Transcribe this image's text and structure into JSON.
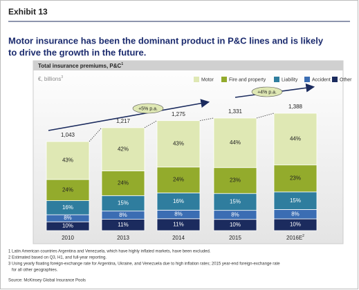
{
  "chart_data": {
    "type": "stacked_bar",
    "exhibit": "Exhibit 13",
    "title": [
      "Motor insurance has been the dominant product in P&C lines and is likely",
      "to drive the growth in the future."
    ],
    "subtitle": "Total insurance premiums, P&C",
    "subtitle_note": "1",
    "unit": "€, billions",
    "unit_note": "3",
    "categories": [
      "2010",
      "2013",
      "2014",
      "2015",
      "2016E"
    ],
    "category_notes": [
      null,
      null,
      null,
      null,
      "2"
    ],
    "series": [
      {
        "name": "Motor",
        "color": "#dfe8b4",
        "values": [
          43,
          42,
          43,
          44,
          44
        ],
        "value_labels": [
          "43%",
          "42%",
          "43%",
          "44%",
          "44%"
        ]
      },
      {
        "name": "Fire and property",
        "color": "#93ab2c",
        "values": [
          24,
          24,
          24,
          23,
          23
        ],
        "value_labels": [
          "24%",
          "24%",
          "24%",
          "23%",
          "23%"
        ]
      },
      {
        "name": "Liability",
        "color": "#2f7d9e",
        "values": [
          16,
          15,
          16,
          15,
          15
        ],
        "value_labels": [
          "16%",
          "15%",
          "16%",
          "15%",
          "15%"
        ]
      },
      {
        "name": "Accident",
        "color": "#3b6db3",
        "values": [
          8,
          8,
          8,
          8,
          8
        ],
        "value_labels": [
          "8%",
          "8%",
          "8%",
          "8%",
          "8%"
        ]
      },
      {
        "name": "Other",
        "color": "#1b2b5e",
        "values": [
          10,
          11,
          11,
          10,
          10
        ],
        "value_labels": [
          "10%",
          "11%",
          "11%",
          "10%",
          "10%"
        ]
      }
    ],
    "totals": {
      "values": [
        1043,
        1217,
        1275,
        1331,
        1388
      ],
      "value_labels": [
        "1,043",
        "1,217",
        "1,275",
        "1,331",
        "1,388"
      ]
    },
    "annotations": [
      "+5% p.a.",
      "+4% p.a."
    ],
    "footnotes": [
      "1 Latin American countries Argentina and Venezuela, which have highly inflated markets, have been excluded.",
      "2 Estimated based on Q3, H1, and full-year reporting.",
      "3 Using yearly floating foreign-exchange rate for Argentina, Ukraine, and Venezuela due to high inflation rates; 2015 year-end foreign-exchange rate",
      "for all other geographies."
    ],
    "source": "Source: McKinsey Global Insurance Pools"
  }
}
